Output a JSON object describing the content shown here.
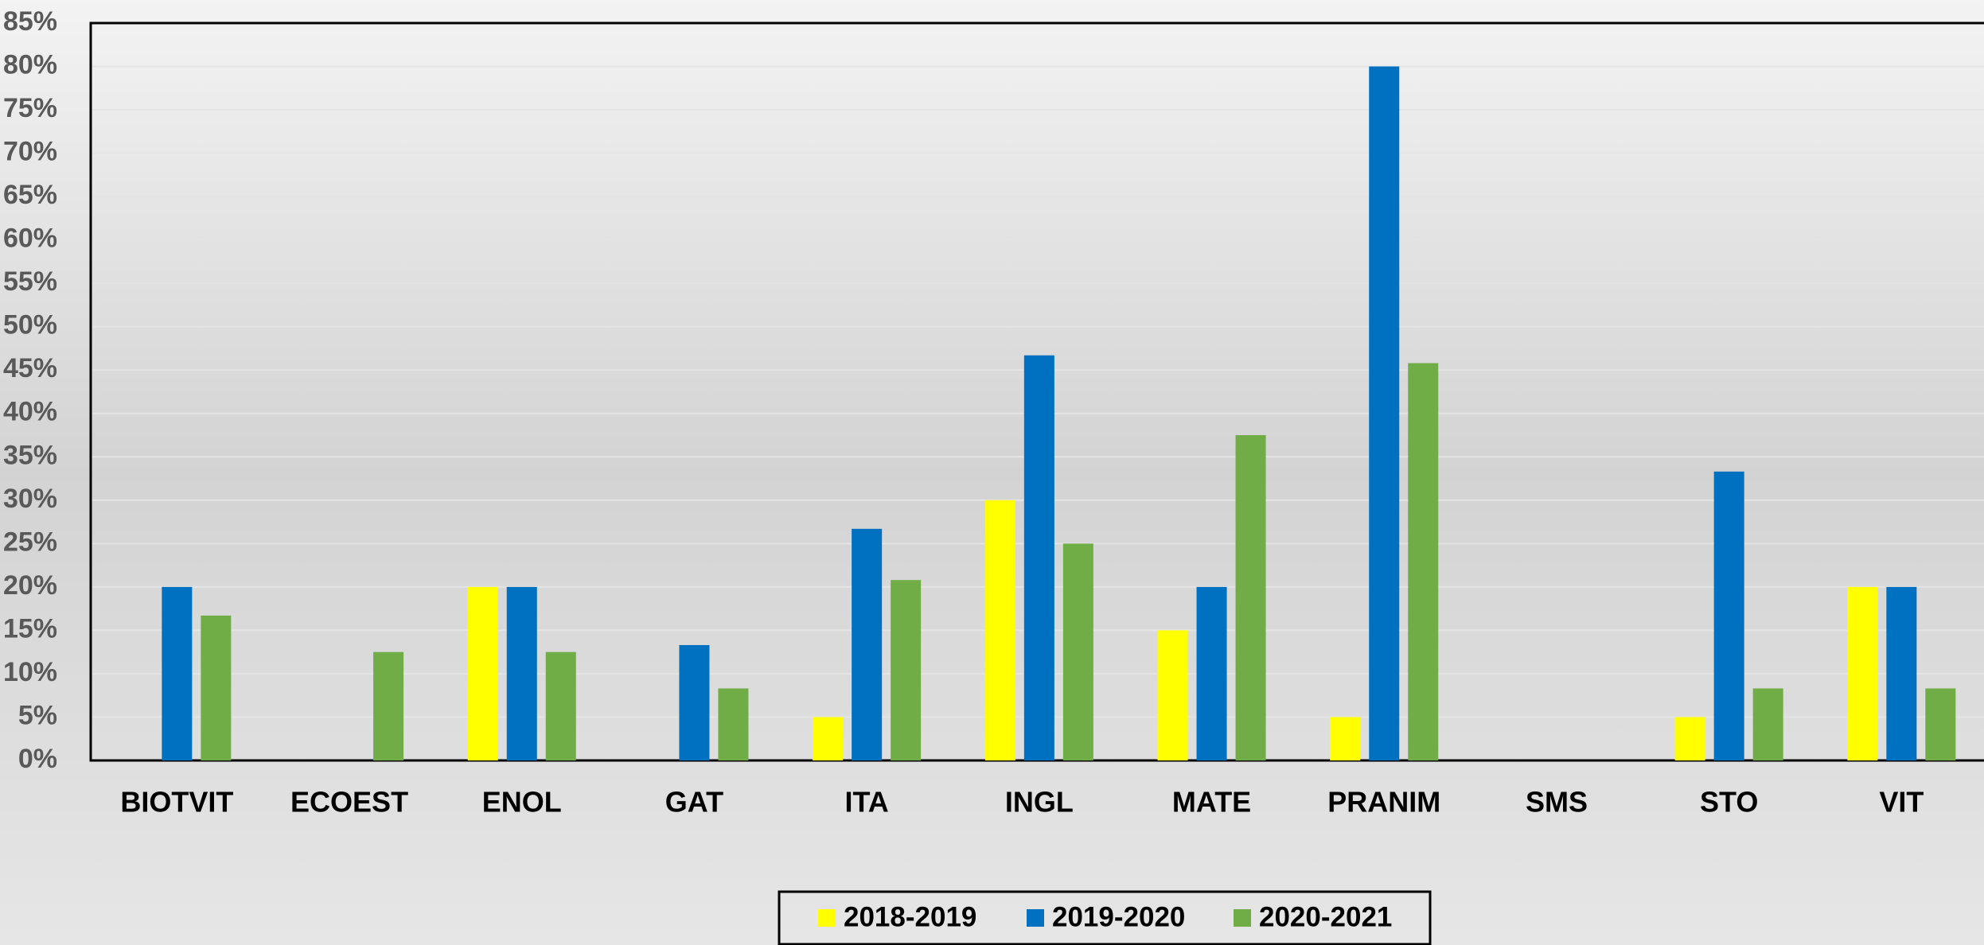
{
  "chart_data": {
    "type": "bar",
    "categories": [
      "BIOTVIT",
      "ECOEST",
      "ENOL",
      "GAT",
      "ITA",
      "INGL",
      "MATE",
      "PRANIM",
      "SMS",
      "STO",
      "VIT"
    ],
    "series": [
      {
        "name": "2018-2019",
        "color": "#ffff00",
        "values": [
          0,
          0,
          20,
          0,
          5,
          30,
          15,
          5,
          0,
          5,
          20
        ]
      },
      {
        "name": "2019-2020",
        "color": "#0070c0",
        "values": [
          20,
          0,
          20,
          13.3,
          26.7,
          46.7,
          20,
          80,
          0,
          33.3,
          20
        ]
      },
      {
        "name": "2020-2021",
        "color": "#70ad47",
        "values": [
          16.7,
          12.5,
          12.5,
          8.3,
          20.8,
          25,
          37.5,
          45.8,
          0,
          8.3,
          8.3
        ]
      }
    ],
    "ylim": [
      0,
      85
    ],
    "yticks": [
      {
        "value": 0,
        "label": "0%"
      },
      {
        "value": 5,
        "label": "5%"
      },
      {
        "value": 10,
        "label": "10%"
      },
      {
        "value": 15,
        "label": "15%"
      },
      {
        "value": 20,
        "label": "20%"
      },
      {
        "value": 25,
        "label": "25%"
      },
      {
        "value": 30,
        "label": "30%"
      },
      {
        "value": 35,
        "label": "35%"
      },
      {
        "value": 40,
        "label": "40%"
      },
      {
        "value": 45,
        "label": "45%"
      },
      {
        "value": 50,
        "label": "50%"
      },
      {
        "value": 55,
        "label": "55%"
      },
      {
        "value": 60,
        "label": "60%"
      },
      {
        "value": 65,
        "label": "65%"
      },
      {
        "value": 70,
        "label": "70%"
      },
      {
        "value": 75,
        "label": "75%"
      },
      {
        "value": 80,
        "label": "80%"
      },
      {
        "value": 85,
        "label": "85%"
      }
    ],
    "grid": true,
    "legend": "bottom"
  }
}
